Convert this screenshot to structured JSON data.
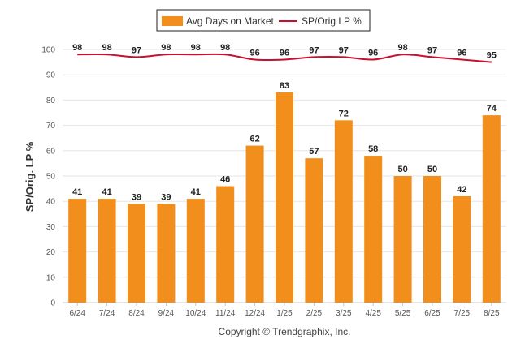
{
  "chart_data": {
    "type": "bar",
    "categories": [
      "6/24",
      "7/24",
      "8/24",
      "9/24",
      "10/24",
      "11/24",
      "12/24",
      "1/25",
      "2/25",
      "3/25",
      "4/25",
      "5/25",
      "6/25",
      "7/25",
      "8/25"
    ],
    "series": [
      {
        "name": "Avg Days on Market",
        "type": "bar",
        "color": "#f28e1c",
        "values": [
          41,
          41,
          39,
          39,
          41,
          46,
          62,
          83,
          57,
          72,
          58,
          50,
          50,
          42,
          74
        ]
      },
      {
        "name": "SP/Orig LP %",
        "type": "line",
        "color": "#c8102e",
        "values": [
          98,
          98,
          97,
          98,
          98,
          98,
          96,
          96,
          97,
          97,
          96,
          98,
          97,
          96,
          95
        ]
      }
    ],
    "ylabel": "SP/Orig. LP %",
    "ylim": [
      0,
      100
    ],
    "yticks": [
      0,
      10,
      20,
      30,
      40,
      50,
      60,
      70,
      80,
      90,
      100
    ],
    "grid": true,
    "legend": "top-center"
  },
  "credit": "Copyright © Trendgraphix, Inc."
}
